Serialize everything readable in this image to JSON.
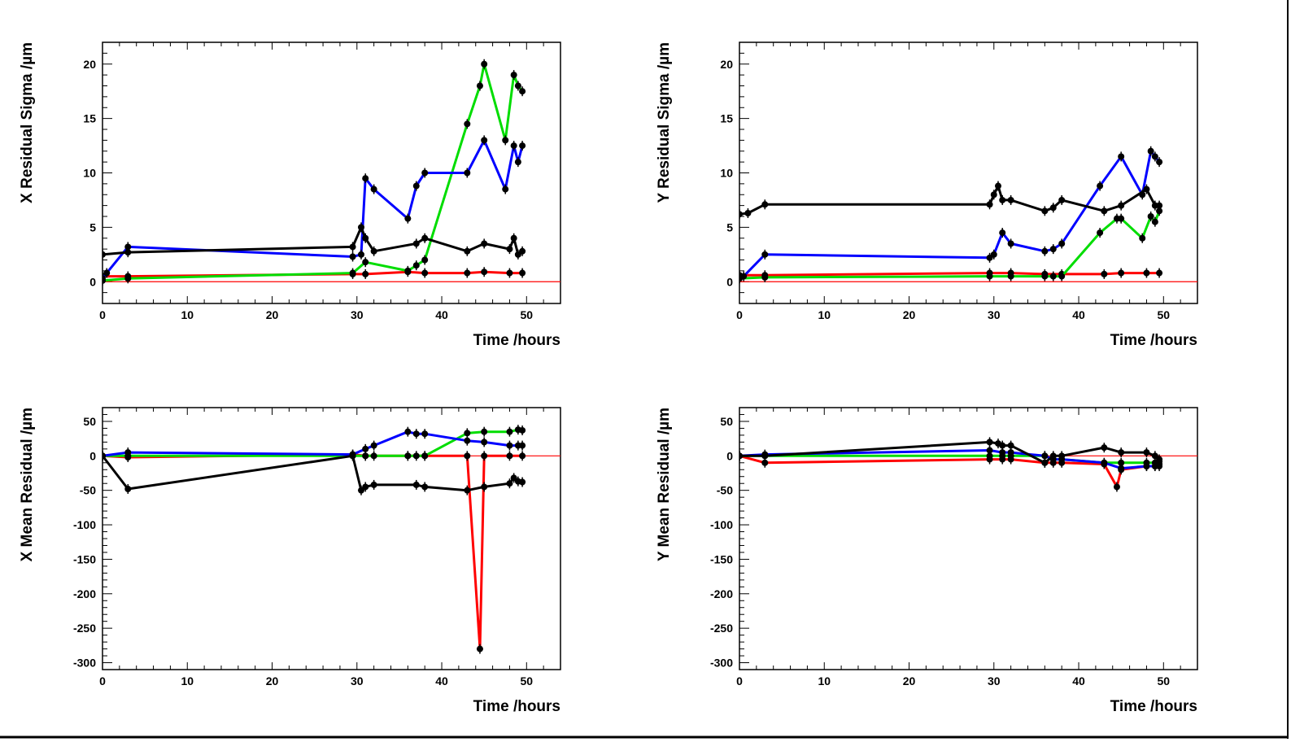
{
  "colors": {
    "black": "#000000",
    "blue": "#0000ff",
    "green": "#00dd00",
    "red": "#ff0000",
    "zero_line": "#ff0000"
  },
  "chart_data": [
    {
      "type": "line",
      "title": "",
      "xlabel": "Time /hours",
      "ylabel": "X Residual Sigma /µm",
      "xlim": [
        0,
        54
      ],
      "ylim": [
        -2,
        22
      ],
      "xticks": [
        0,
        10,
        20,
        30,
        40,
        50
      ],
      "yticks": [
        0,
        5,
        10,
        15,
        20
      ],
      "grid": false,
      "zero_line": true,
      "series": [
        {
          "color": "black",
          "x": [
            0,
            3,
            29.5,
            30.5,
            31,
            32,
            37,
            38,
            43,
            45,
            48,
            48.5,
            49,
            49.5
          ],
          "y": [
            2.5,
            2.7,
            3.2,
            5.0,
            4.0,
            2.8,
            3.5,
            4.0,
            2.8,
            3.5,
            3.0,
            4.0,
            2.5,
            2.8
          ]
        },
        {
          "color": "blue",
          "x": [
            0,
            0.5,
            3,
            29.5,
            30.5,
            31,
            32,
            36,
            37,
            38,
            43,
            45,
            47.5,
            48.5,
            49,
            49.5
          ],
          "y": [
            0.3,
            0.8,
            3.2,
            2.3,
            2.5,
            9.5,
            8.5,
            5.8,
            8.8,
            10.0,
            10.0,
            13.0,
            8.5,
            12.5,
            11.0,
            12.5
          ]
        },
        {
          "color": "green",
          "x": [
            0,
            3,
            29.5,
            31,
            36,
            37,
            38,
            43,
            44.5,
            45,
            47.5,
            48.5,
            49,
            49.5
          ],
          "y": [
            0.1,
            0.3,
            0.8,
            1.8,
            1.0,
            1.5,
            2.0,
            14.5,
            18.0,
            20.0,
            13.0,
            19.0,
            18.0,
            17.5
          ]
        },
        {
          "color": "red",
          "x": [
            0,
            3,
            29.5,
            31,
            36,
            38,
            43,
            45,
            48,
            49.5
          ],
          "y": [
            0.5,
            0.5,
            0.7,
            0.7,
            0.9,
            0.8,
            0.8,
            0.9,
            0.8,
            0.8
          ]
        }
      ]
    },
    {
      "type": "line",
      "title": "",
      "xlabel": "Time /hours",
      "ylabel": "Y Residual Sigma /µm",
      "xlim": [
        0,
        54
      ],
      "ylim": [
        -2,
        22
      ],
      "xticks": [
        0,
        10,
        20,
        30,
        40,
        50
      ],
      "yticks": [
        0,
        5,
        10,
        15,
        20
      ],
      "grid": false,
      "zero_line": true,
      "series": [
        {
          "color": "black",
          "x": [
            0,
            1,
            3,
            29.5,
            30,
            30.5,
            31,
            32,
            36,
            37,
            38,
            43,
            45,
            48,
            49,
            49.5
          ],
          "y": [
            6.2,
            6.3,
            7.1,
            7.1,
            8.0,
            8.8,
            7.5,
            7.5,
            6.5,
            6.8,
            7.5,
            6.5,
            7.0,
            8.5,
            7.0,
            7.0
          ]
        },
        {
          "color": "blue",
          "x": [
            0,
            0.5,
            3,
            29.5,
            30,
            31,
            32,
            36,
            37,
            38,
            42.5,
            45,
            47.5,
            48.5,
            49,
            49.5
          ],
          "y": [
            0.3,
            0.5,
            2.5,
            2.2,
            2.5,
            4.5,
            3.5,
            2.8,
            3.0,
            3.5,
            8.8,
            11.5,
            8.0,
            12.0,
            11.5,
            11.0
          ]
        },
        {
          "color": "green",
          "x": [
            0,
            3,
            29.5,
            32,
            36,
            37,
            38,
            42.5,
            44.5,
            45,
            47.5,
            48.5,
            49,
            49.5
          ],
          "y": [
            0.3,
            0.4,
            0.5,
            0.5,
            0.5,
            0.5,
            0.5,
            4.5,
            5.8,
            5.8,
            4.0,
            6.0,
            5.5,
            6.5
          ]
        },
        {
          "color": "red",
          "x": [
            0,
            3,
            29.5,
            32,
            36,
            38,
            43,
            45,
            48,
            49.5
          ],
          "y": [
            0.6,
            0.6,
            0.8,
            0.8,
            0.7,
            0.7,
            0.7,
            0.8,
            0.8,
            0.8
          ]
        }
      ]
    },
    {
      "type": "line",
      "title": "",
      "xlabel": "Time /hours",
      "ylabel": "X Mean Residual /µm",
      "xlim": [
        0,
        54
      ],
      "ylim": [
        -310,
        70
      ],
      "xticks": [
        0,
        10,
        20,
        30,
        40,
        50
      ],
      "yticks": [
        50,
        0,
        -50,
        -100,
        -150,
        -200,
        -250,
        -300
      ],
      "grid": false,
      "zero_line": true,
      "series": [
        {
          "color": "black",
          "x": [
            0,
            3,
            29.5,
            30.5,
            31,
            32,
            37,
            38,
            43,
            45,
            48,
            48.5,
            49,
            49.5
          ],
          "y": [
            0,
            -48,
            0,
            -50,
            -45,
            -42,
            -42,
            -45,
            -50,
            -45,
            -40,
            -32,
            -37,
            -38
          ]
        },
        {
          "color": "blue",
          "x": [
            0,
            3,
            29.5,
            31,
            32,
            36,
            37,
            38,
            43,
            45,
            48,
            49,
            49.5
          ],
          "y": [
            0,
            5,
            2,
            10,
            15,
            35,
            32,
            32,
            22,
            20,
            15,
            15,
            15
          ]
        },
        {
          "color": "green",
          "x": [
            0,
            3,
            29.5,
            31,
            32,
            36,
            37,
            38,
            43,
            45,
            48,
            49,
            49.5
          ],
          "y": [
            0,
            0,
            0,
            0,
            0,
            0,
            0,
            0,
            33,
            35,
            35,
            38,
            37
          ]
        },
        {
          "color": "red",
          "x": [
            0,
            3,
            29.5,
            31,
            36,
            38,
            43,
            44.5,
            45,
            48,
            49.5
          ],
          "y": [
            0,
            -2,
            2,
            0,
            0,
            0,
            0,
            -280,
            0,
            0,
            0
          ]
        }
      ]
    },
    {
      "type": "line",
      "title": "",
      "xlabel": "Time /hours",
      "ylabel": "Y Mean Residual /µm",
      "xlim": [
        0,
        54
      ],
      "ylim": [
        -310,
        70
      ],
      "xticks": [
        0,
        10,
        20,
        30,
        40,
        50
      ],
      "yticks": [
        50,
        0,
        -50,
        -100,
        -150,
        -200,
        -250,
        -300
      ],
      "grid": false,
      "zero_line": true,
      "series": [
        {
          "color": "black",
          "x": [
            0,
            3,
            29.5,
            30.5,
            31,
            32,
            36,
            37,
            38,
            43,
            45,
            48,
            49,
            49.5
          ],
          "y": [
            0,
            0,
            20,
            18,
            15,
            15,
            -10,
            0,
            0,
            12,
            5,
            5,
            0,
            -5
          ]
        },
        {
          "color": "blue",
          "x": [
            0,
            3,
            29.5,
            31,
            32,
            36,
            37,
            38,
            43,
            45,
            48,
            49,
            49.5
          ],
          "y": [
            0,
            2,
            8,
            5,
            5,
            0,
            -5,
            -5,
            -10,
            -18,
            -15,
            -15,
            -12
          ]
        },
        {
          "color": "green",
          "x": [
            0,
            3,
            29.5,
            31,
            32,
            36,
            37,
            38,
            43,
            45,
            48,
            49,
            49.5
          ],
          "y": [
            0,
            0,
            0,
            0,
            0,
            0,
            -5,
            -5,
            -10,
            -10,
            -10,
            -10,
            -8
          ]
        },
        {
          "color": "red",
          "x": [
            0,
            3,
            29.5,
            31,
            32,
            36,
            37,
            38,
            43,
            44.5,
            45,
            48,
            49,
            49.5
          ],
          "y": [
            0,
            -10,
            -5,
            -5,
            -5,
            -10,
            -10,
            -10,
            -12,
            -45,
            -20,
            -15,
            -15,
            -15
          ]
        }
      ]
    }
  ]
}
